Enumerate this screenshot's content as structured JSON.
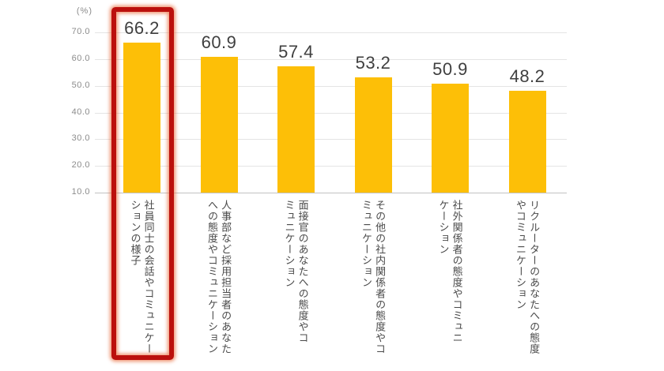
{
  "chart_data": {
    "type": "bar",
    "title": "",
    "unit_label": "(%)",
    "categories": [
      "社員同士の会話やコミュニケー\nションの様子",
      "人事部など採用担当者のあなた\nへの態度やコミュニケーション",
      "面接官のあなたへの態度やコ\nミュニケーション",
      "その他の社内関係者の態度やコ\nミュニケーション",
      "社外関係者の態度やコミュニ\nケーション",
      "リクルーターのあなたへの態度\nやコミュニケーション"
    ],
    "values": [
      66.2,
      60.9,
      57.4,
      53.2,
      50.9,
      48.2
    ],
    "value_labels": [
      "66.2",
      "60.9",
      "57.4",
      "53.2",
      "50.9",
      "48.2"
    ],
    "xlabel": "",
    "ylabel": "(%)",
    "ylim": [
      10.0,
      70.0
    ],
    "ytick_labels": [
      "70.0",
      "60.0",
      "50.0",
      "40.0",
      "30.0",
      "20.0",
      "10.0"
    ],
    "grid": true,
    "legend": false,
    "bar_color": "#fdbf07",
    "gridline_color": "#e4e4e4",
    "axis_text_color": "#8c8c8c",
    "value_text_color": "#3f3f3f",
    "category_text_color": "#4a4a4a",
    "highlight": {
      "index": 0,
      "border_color": "#bb100d",
      "glow_color": "#e97042"
    }
  }
}
